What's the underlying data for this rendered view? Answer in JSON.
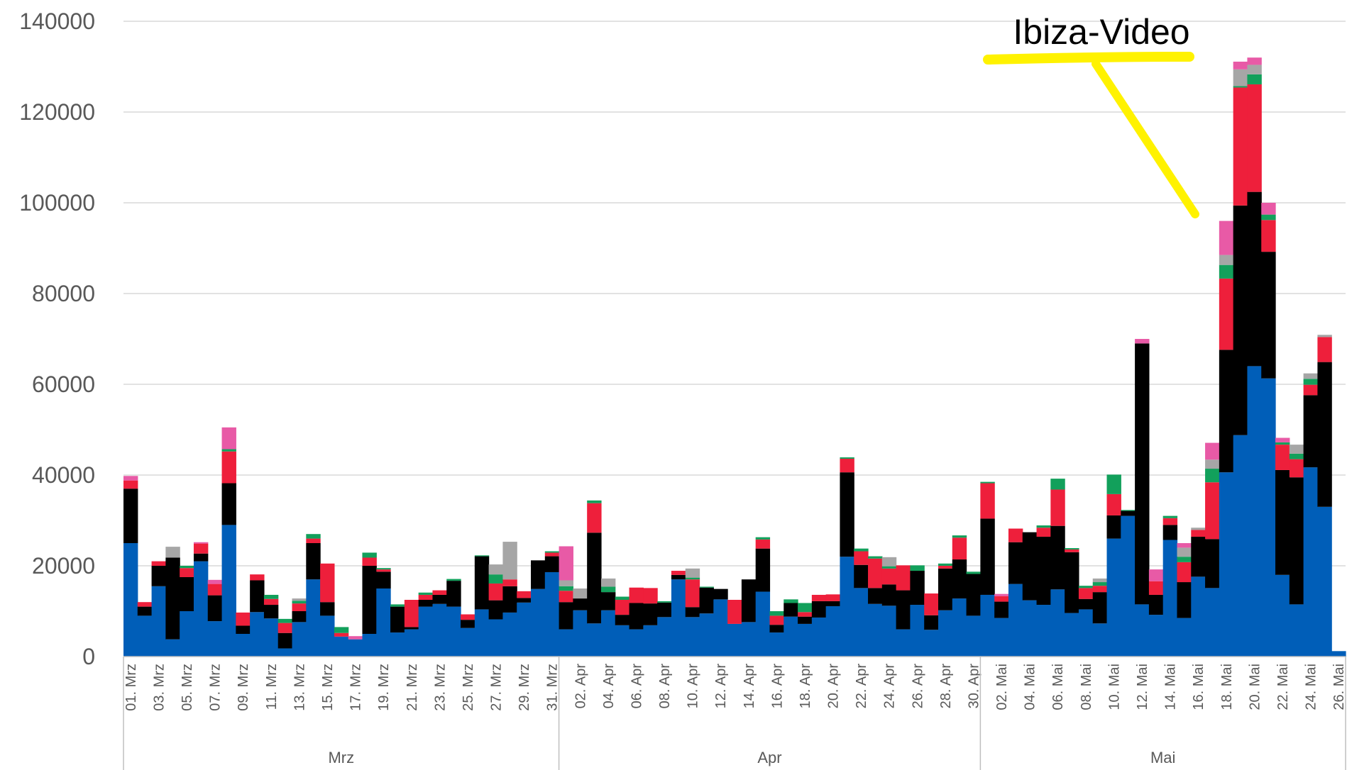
{
  "chart_data": {
    "type": "bar",
    "stacked": true,
    "title": "",
    "xlabel": "",
    "ylabel": "",
    "ylim": [
      0,
      140000
    ],
    "yticks": [
      0,
      20000,
      40000,
      60000,
      80000,
      100000,
      120000,
      140000
    ],
    "grid": true,
    "legend": "none",
    "months": [
      {
        "label": "Mrz",
        "days": 31
      },
      {
        "label": "Apr",
        "days": 30
      },
      {
        "label": "Mai",
        "days": 26
      }
    ],
    "categories": [
      "01. Mrz",
      "02. Mrz",
      "03. Mrz",
      "04. Mrz",
      "05. Mrz",
      "06. Mrz",
      "07. Mrz",
      "08. Mrz",
      "09. Mrz",
      "10. Mrz",
      "11. Mrz",
      "12. Mrz",
      "13. Mrz",
      "14. Mrz",
      "15. Mrz",
      "16. Mrz",
      "17. Mrz",
      "18. Mrz",
      "19. Mrz",
      "20. Mrz",
      "21. Mrz",
      "22. Mrz",
      "23. Mrz",
      "24. Mrz",
      "25. Mrz",
      "26. Mrz",
      "27. Mrz",
      "28. Mrz",
      "29. Mrz",
      "30. Mrz",
      "31. Mrz",
      "01. Apr",
      "02. Apr",
      "03. Apr",
      "04. Apr",
      "05. Apr",
      "06. Apr",
      "07. Apr",
      "08. Apr",
      "09. Apr",
      "10. Apr",
      "11. Apr",
      "12. Apr",
      "13. Apr",
      "14. Apr",
      "15. Apr",
      "16. Apr",
      "17. Apr",
      "18. Apr",
      "19. Apr",
      "20. Apr",
      "21. Apr",
      "22. Apr",
      "23. Apr",
      "24. Apr",
      "25. Apr",
      "26. Apr",
      "27. Apr",
      "28. Apr",
      "29. Apr",
      "30. Apr",
      "01. Mai",
      "02. Mai",
      "03. Mai",
      "04. Mai",
      "05. Mai",
      "06. Mai",
      "07. Mai",
      "08. Mai",
      "09. Mai",
      "10. Mai",
      "11. Mai",
      "12. Mai",
      "13. Mai",
      "14. Mai",
      "15. Mai",
      "16. Mai",
      "17. Mai",
      "18. Mai",
      "19. Mai",
      "20. Mai",
      "21. Mai",
      "22. Mai",
      "23. Mai",
      "24. Mai",
      "25. Mai",
      "26. Mai"
    ],
    "visible_tick_labels": [
      "01. Mrz",
      "03. Mrz",
      "05. Mrz",
      "07. Mrz",
      "09. Mrz",
      "11. Mrz",
      "13. Mrz",
      "15. Mrz",
      "17. Mrz",
      "19. Mrz",
      "21. Mrz",
      "23. Mrz",
      "25. Mrz",
      "27. Mrz",
      "29. Mrz",
      "31. Mrz",
      "02. Apr",
      "04. Apr",
      "06. Apr",
      "08. Apr",
      "10. Apr",
      "12. Apr",
      "14. Apr",
      "16. Apr",
      "18. Apr",
      "20. Apr",
      "22. Apr",
      "24. Apr",
      "26. Apr",
      "28. Apr",
      "30. Apr",
      "02. Mai",
      "04. Mai",
      "06. Mai",
      "08. Mai",
      "10. Mai",
      "12. Mai",
      "14. Mai",
      "16. Mai",
      "18. Mai",
      "20. Mai",
      "22. Mai",
      "24. Mai",
      "26. Mai"
    ],
    "series": [
      {
        "color": "#005EB8",
        "values": [
          25000,
          9000,
          15500,
          3800,
          10000,
          21000,
          7800,
          29000,
          5000,
          9800,
          8400,
          1800,
          7600,
          17000,
          9000,
          4400,
          3800,
          5000,
          15000,
          5300,
          6000,
          11000,
          11600,
          11000,
          6300,
          10400,
          8200,
          9700,
          11900,
          14900,
          18600,
          6000,
          10200,
          7300,
          10200,
          6900,
          6000,
          6900,
          8700,
          17000,
          8700,
          9500,
          12600,
          7200,
          7600,
          14300,
          5300,
          8800,
          7200,
          8600,
          11100,
          22000,
          15100,
          11600,
          11200,
          6000,
          11400,
          5900,
          10200,
          12800,
          9000,
          13600,
          8500,
          16000,
          12400,
          11400,
          14800,
          9600,
          10400,
          7300,
          26000,
          31000,
          11500,
          9200,
          25700,
          8500,
          17600,
          15100,
          40600,
          48800,
          64000,
          61300,
          18000,
          11500,
          41700,
          33000,
          1200
        ]
      },
      {
        "color": "#000000",
        "values": [
          12000,
          2000,
          4500,
          18000,
          7500,
          1700,
          5700,
          9200,
          1800,
          7000,
          3000,
          3400,
          2400,
          8000,
          3000,
          0,
          0,
          15000,
          3700,
          5700,
          500,
          1500,
          2000,
          5700,
          1800,
          11700,
          4200,
          5800,
          1000,
          6300,
          3500,
          6000,
          2600,
          20000,
          4000,
          2300,
          5800,
          4800,
          3200,
          1000,
          2200,
          5700,
          2300,
          0,
          9400,
          9500,
          1700,
          3000,
          1600,
          3600,
          1100,
          18600,
          5100,
          3500,
          4700,
          8600,
          7500,
          3200,
          9200,
          8600,
          9200,
          16800,
          3600,
          9200,
          15000,
          15000,
          14000,
          13400,
          2300,
          6900,
          5100,
          1100,
          57500,
          4400,
          3300,
          7900,
          8800,
          10800,
          27000,
          50600,
          38400,
          27900,
          23100,
          28000,
          15900,
          31900,
          0
        ]
      },
      {
        "color": "#EE1F3B",
        "values": [
          1800,
          1000,
          1000,
          0,
          2000,
          2200,
          2500,
          7000,
          2900,
          1300,
          1300,
          2200,
          1700,
          1000,
          8500,
          800,
          0,
          1800,
          500,
          0,
          6000,
          1100,
          1000,
          0,
          1200,
          0,
          3700,
          1500,
          1500,
          0,
          800,
          2500,
          0,
          6500,
          0,
          3300,
          3400,
          3400,
          0,
          900,
          6100,
          0,
          0,
          5300,
          0,
          2000,
          2000,
          0,
          1000,
          1400,
          1500,
          3000,
          3000,
          6500,
          3500,
          5500,
          0,
          4800,
          600,
          4800,
          0,
          7800,
          1200,
          3000,
          0,
          2000,
          8000,
          600,
          2400,
          1400,
          4700,
          0,
          0,
          3000,
          1500,
          4400,
          1500,
          12500,
          15700,
          26000,
          23700,
          7000,
          5600,
          4000,
          2300,
          5500,
          0
        ]
      },
      {
        "color": "#12A05B",
        "values": [
          0,
          0,
          0,
          0,
          500,
          0,
          0,
          500,
          0,
          0,
          900,
          900,
          600,
          1000,
          0,
          1300,
          0,
          1100,
          300,
          500,
          0,
          500,
          0,
          400,
          0,
          200,
          2000,
          0,
          0,
          0,
          300,
          1000,
          0,
          600,
          1200,
          700,
          0,
          0,
          300,
          0,
          400,
          200,
          0,
          0,
          0,
          500,
          1000,
          800,
          2000,
          0,
          0,
          300,
          600,
          500,
          500,
          0,
          1200,
          0,
          500,
          500,
          500,
          300,
          0,
          0,
          0,
          500,
          2400,
          300,
          500,
          800,
          4300,
          200,
          0,
          0,
          500,
          1200,
          0,
          3000,
          3000,
          300,
          2200,
          1200,
          500,
          1200,
          1300,
          0,
          0
        ]
      },
      {
        "color": "#A6A6A6",
        "values": [
          0,
          0,
          0,
          2400,
          0,
          0,
          0,
          0,
          0,
          0,
          0,
          0,
          500,
          0,
          0,
          0,
          0,
          0,
          0,
          0,
          0,
          0,
          0,
          0,
          0,
          0,
          2200,
          8300,
          0,
          0,
          0,
          1300,
          2200,
          0,
          1800,
          0,
          0,
          0,
          0,
          0,
          2000,
          0,
          0,
          0,
          0,
          0,
          0,
          0,
          0,
          0,
          0,
          0,
          0,
          0,
          2000,
          0,
          0,
          0,
          0,
          0,
          0,
          0,
          0,
          0,
          0,
          0,
          0,
          0,
          0,
          800,
          0,
          0,
          0,
          0,
          0,
          2000,
          500,
          2000,
          2200,
          3700,
          2100,
          0,
          0,
          2000,
          1200,
          500,
          0
        ]
      },
      {
        "color": "#E85AA6",
        "values": [
          1000,
          0,
          0,
          0,
          0,
          300,
          900,
          4800,
          0,
          0,
          0,
          0,
          0,
          0,
          0,
          0,
          700,
          0,
          0,
          0,
          0,
          0,
          0,
          0,
          0,
          0,
          0,
          0,
          0,
          0,
          0,
          7500,
          0,
          0,
          0,
          0,
          0,
          0,
          0,
          0,
          0,
          0,
          0,
          0,
          0,
          0,
          0,
          0,
          0,
          0,
          0,
          0,
          0,
          0,
          0,
          0,
          0,
          0,
          0,
          0,
          0,
          0,
          500,
          0,
          0,
          0,
          0,
          0,
          0,
          0,
          0,
          0,
          1000,
          2600,
          0,
          1000,
          0,
          3700,
          7500,
          1700,
          1600,
          2600,
          1000,
          0,
          0,
          0,
          0
        ]
      }
    ],
    "annotations": [
      {
        "text": "Ibiza-Video",
        "color": "#FFF200"
      }
    ]
  }
}
